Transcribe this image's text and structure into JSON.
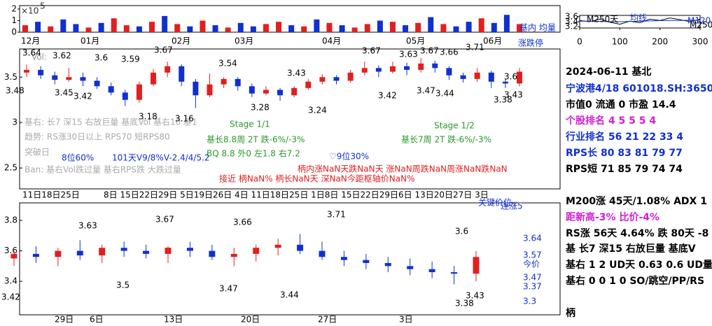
{
  "chart_data": [
    {
      "type": "bar",
      "scale_label": "×10",
      "scale_exp": "5",
      "legend": "基内 均量",
      "ylim": [
        0,
        2.3
      ],
      "yticks": [
        0,
        1,
        2
      ],
      "months": [
        "12月",
        "01月",
        "02月",
        "03月",
        "04月",
        "05月",
        "06月"
      ],
      "values": [
        0.6,
        0.9,
        0.5,
        1.1,
        0.7,
        0.4,
        0.8,
        1.2,
        0.6,
        0.5,
        0.9,
        1.4,
        0.7,
        0.5,
        1.0,
        0.6,
        0.4,
        0.8,
        0.5,
        0.7,
        0.9,
        0.6,
        0.5,
        1.1,
        0.8,
        0.6,
        0.4,
        0.7,
        1.0,
        0.9,
        0.6,
        0.8,
        1.3,
        0.7,
        0.5,
        0.9,
        1.2,
        0.8,
        1.5,
        0.7
      ],
      "colors": [
        "#e02020",
        "#1030d0",
        "#e02020",
        "#1030d0",
        "#1030d0",
        "#e02020",
        "#1030d0",
        "#e02020",
        "#e02020",
        "#1030d0",
        "#e02020",
        "#1030d0",
        "#e02020",
        "#1030d0",
        "#e02020",
        "#1030d0",
        "#e02020",
        "#1030d0",
        "#1030d0",
        "#e02020",
        "#e02020",
        "#1030d0",
        "#e02020",
        "#1030d0",
        "#e02020",
        "#1030d0",
        "#e02020",
        "#e02020",
        "#1030d0",
        "#e02020",
        "#1030d0",
        "#e02020",
        "#1030d0",
        "#e02020",
        "#1030d0",
        "#1030d0",
        "#e02020",
        "#1030d0",
        "#1030d0",
        "#e02020"
      ]
    },
    {
      "type": "line",
      "labels": [
        "M250天",
        "均线",
        "M120",
        "M250"
      ],
      "xlim": [
        0,
        300
      ],
      "xticks": [
        0,
        100,
        200,
        300
      ],
      "ylim": [
        3.15,
        3.65
      ],
      "yticks": [
        3.2,
        3.4,
        3.6
      ],
      "x": [
        0,
        25,
        50,
        75,
        100,
        125,
        150,
        175,
        200,
        225,
        250,
        275,
        300
      ],
      "series": [
        {
          "color": "#000000",
          "values": [
            3.45,
            3.4,
            3.5,
            3.38,
            3.3,
            3.42,
            3.36,
            3.5,
            3.45,
            3.55,
            3.48,
            3.4,
            3.5
          ]
        },
        {
          "color": "#1030d0",
          "values": [
            3.42,
            3.42,
            3.41,
            3.4,
            3.4,
            3.41,
            3.42,
            3.43,
            3.44,
            3.45,
            3.45,
            3.46,
            3.46
          ]
        }
      ]
    },
    {
      "type": "candlestick",
      "up_color": "#e02020",
      "down_color": "#1030d0",
      "ylim": [
        2.27,
        3.81
      ],
      "yticks": [
        2.5,
        3,
        3.5
      ],
      "days": [
        "11日18日25日",
        "8日 15日22日29日 5日19日26日 4日 11日18日25日 1日8日 15日22日29日6日 13日20日27日 3日"
      ],
      "annotations": [
        "Vol:",
        "基右: 长7 深15 右放巨量 基底Vol 基右10 基1",
        "趋势: RS涨30日以上 RPS70 短RPS80",
        "突破日",
        "Ban: 基右Vol跌过量 基右RPS跌 大跌过量",
        "Stage 1/1",
        "Stage 1/2",
        "基长8.8周 2T 跌-6%/-3%",
        "BQ 8.8 外0 左1.8 右7.2",
        "基长7周 2T 跌-6%/-3%",
        "8位60%",
        "101天V9/8%V-2.4/4/5.2",
        "♡9位30%",
        "接近 柄NaN% 柄长NaN天 深NaN今距枢轴价NaN%",
        "柄内涨NaN天跌NaN天 涨NaN周跌NaN周涨NaN跌NaN",
        "涨跌停"
      ],
      "price_labels": [
        3.64,
        3.62,
        3.6,
        3.59,
        3.67,
        3.54,
        3.43,
        3.67,
        3.63,
        3.67,
        3.66,
        3.71,
        3.6,
        3.48,
        3.45,
        3.42,
        3.18,
        3.16,
        3.28,
        3.24,
        3.42,
        3.47,
        3.44,
        3.38,
        3.43
      ],
      "open": [
        3.55,
        3.58,
        3.52,
        3.47,
        3.5,
        3.46,
        3.4,
        3.33,
        3.25,
        3.42,
        3.55,
        3.62,
        3.45,
        3.3,
        3.42,
        3.48,
        3.4,
        3.32,
        3.36,
        3.3,
        3.38,
        3.45,
        3.5,
        3.46,
        3.55,
        3.6,
        3.56,
        3.62,
        3.58,
        3.65,
        3.6,
        3.52,
        3.48,
        3.55,
        3.45,
        3.43
      ],
      "high": [
        3.64,
        3.62,
        3.56,
        3.6,
        3.55,
        3.5,
        3.44,
        3.36,
        3.45,
        3.59,
        3.67,
        3.64,
        3.48,
        3.54,
        3.5,
        3.5,
        3.43,
        3.4,
        3.38,
        3.4,
        3.48,
        3.53,
        3.52,
        3.58,
        3.67,
        3.63,
        3.67,
        3.66,
        3.71,
        3.68,
        3.62,
        3.55,
        3.6,
        3.57,
        3.48,
        3.6
      ],
      "low": [
        3.5,
        3.48,
        3.42,
        3.45,
        3.4,
        3.37,
        3.3,
        3.18,
        3.22,
        3.4,
        3.5,
        3.4,
        3.16,
        3.28,
        3.38,
        3.35,
        3.28,
        3.3,
        3.24,
        3.28,
        3.36,
        3.42,
        3.42,
        3.44,
        3.52,
        3.5,
        3.54,
        3.52,
        3.55,
        3.55,
        3.47,
        3.44,
        3.45,
        3.38,
        3.38,
        3.4
      ],
      "close": [
        3.58,
        3.52,
        3.47,
        3.5,
        3.46,
        3.4,
        3.33,
        3.25,
        3.42,
        3.55,
        3.62,
        3.45,
        3.3,
        3.42,
        3.48,
        3.4,
        3.32,
        3.36,
        3.3,
        3.38,
        3.45,
        3.5,
        3.46,
        3.55,
        3.6,
        3.56,
        3.62,
        3.58,
        3.65,
        3.6,
        3.52,
        3.48,
        3.55,
        3.45,
        3.43,
        3.56
      ]
    },
    {
      "type": "candlestick",
      "up_color": "#e02020",
      "down_color": "#1030d0",
      "ylim": [
        3.18,
        3.915
      ],
      "yticks": [
        3.4,
        3.6,
        3.8
      ],
      "days": [
        "29日",
        "6日",
        "13日",
        "20日",
        "27日",
        "3日"
      ],
      "annotations": [
        "关键价位",
        "连涨5",
        "今价"
      ],
      "price_labels": [
        3.63,
        3.67,
        3.5,
        3.66,
        3.47,
        3.71,
        3.44,
        3.6,
        3.38,
        3.43,
        3.42,
        3.64,
        3.57,
        3.47,
        3.37,
        3.3
      ],
      "open": [
        3.55,
        3.58,
        3.56,
        3.6,
        3.57,
        3.62,
        3.6,
        3.58,
        3.62,
        3.6,
        3.56,
        3.58,
        3.62,
        3.64,
        3.6,
        3.56,
        3.54,
        3.52,
        3.5,
        3.48,
        3.46,
        3.45
      ],
      "high": [
        3.6,
        3.63,
        3.62,
        3.67,
        3.64,
        3.66,
        3.64,
        3.63,
        3.66,
        3.64,
        3.62,
        3.64,
        3.68,
        3.71,
        3.66,
        3.6,
        3.58,
        3.56,
        3.55,
        3.53,
        3.5,
        3.6
      ],
      "low": [
        3.5,
        3.52,
        3.5,
        3.54,
        3.52,
        3.56,
        3.55,
        3.52,
        3.56,
        3.54,
        3.5,
        3.53,
        3.57,
        3.58,
        3.54,
        3.5,
        3.48,
        3.46,
        3.44,
        3.42,
        3.38,
        3.4
      ],
      "close": [
        3.58,
        3.56,
        3.6,
        3.57,
        3.62,
        3.6,
        3.58,
        3.62,
        3.6,
        3.56,
        3.58,
        3.62,
        3.64,
        3.6,
        3.56,
        3.54,
        3.52,
        3.5,
        3.48,
        3.46,
        3.45,
        3.56
      ]
    }
  ],
  "info_panel": [
    "2024-06-11 基北",
    "宁波港4/18 601018.SH:3650",
    "市值0 流通 0 市盈 14.4",
    "个股排名 4 5 5 5 4",
    "行业排名 56 21 22 33 4",
    "RPS长 80 83 81 79 77",
    "RPS短 71 85 79 74 74",
    "M200涨 45天/1.08% ADX 1",
    "距新高-3% 比价-4%",
    "RS涨 56天 4.64% 跌 80天 -8",
    "基 长7 深15 右放巨量 基底V",
    "基右 1 2 UD天 0.63 0.6 UD量",
    "基右 0 0 1 0 SO/跳空/PP/RS",
    "柄"
  ]
}
